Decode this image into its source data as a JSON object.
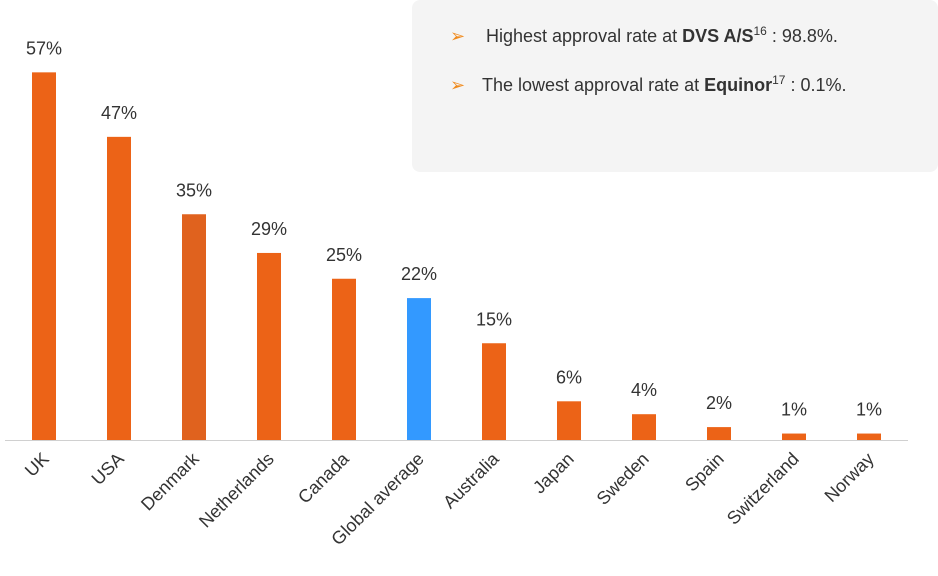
{
  "chart_data": {
    "type": "bar",
    "categories": [
      "UK",
      "USA",
      "Denmark",
      "Netherlands",
      "Canada",
      "Global average",
      "Australia",
      "Japan",
      "Sweden",
      "Spain",
      "Switzerland",
      "Norway"
    ],
    "values": [
      57,
      47,
      35,
      29,
      25,
      22,
      15,
      6,
      4,
      2,
      1,
      1
    ],
    "value_labels": [
      "57%",
      "47%",
      "35%",
      "29%",
      "25%",
      "22%",
      "15%",
      "6%",
      "4%",
      "2%",
      "1%",
      "1%"
    ],
    "colors": [
      "#ec6317",
      "#ec6317",
      "#e0621e",
      "#ec6317",
      "#ec6317",
      "#3399ff",
      "#ec6317",
      "#ec6317",
      "#ec6317",
      "#ec6317",
      "#ec6317",
      "#ec6317"
    ],
    "annotations": [
      {
        "before": "Highest approval rate at ",
        "bold": "DVS A/S",
        "sup": "16",
        "after": " : 98.8%."
      },
      {
        "before": "The lowest approval rate at ",
        "bold": "Equinor",
        "sup": "17",
        "after": " : 0.1%."
      }
    ]
  }
}
